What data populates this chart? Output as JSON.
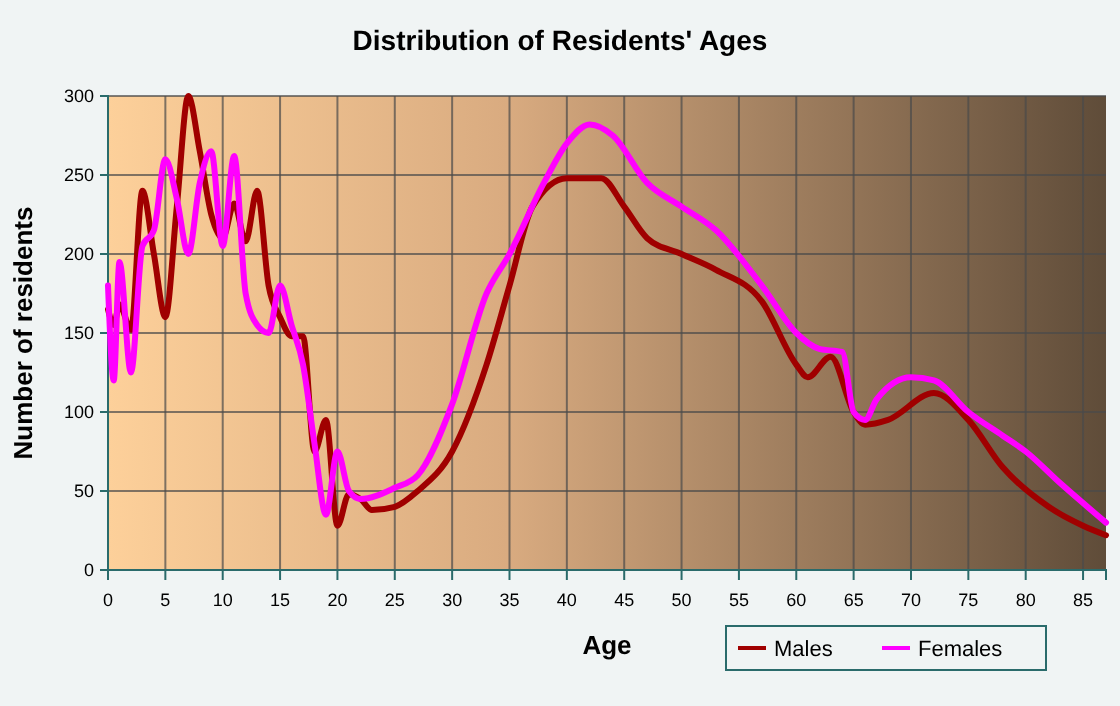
{
  "chart_data": {
    "type": "line",
    "title": "Distribution of Residents' Ages",
    "xlabel": "Age",
    "ylabel": "Number of residents",
    "xlim": [
      0,
      87
    ],
    "xticks": [
      0,
      5,
      10,
      15,
      20,
      25,
      30,
      35,
      40,
      45,
      50,
      55,
      60,
      65,
      70,
      75,
      80,
      85
    ],
    "ylim": [
      0,
      300
    ],
    "yticks": [
      0,
      50,
      100,
      150,
      200,
      250,
      300
    ],
    "grid": true,
    "legend": "bottom right",
    "marker": "none",
    "line_style": "solid",
    "series": [
      {
        "name": "Males",
        "color": "#a00000",
        "x": [
          0,
          0.5,
          1,
          2,
          3,
          4,
          5,
          6,
          7,
          8,
          9,
          10,
          11,
          12,
          13,
          14,
          15,
          16,
          17,
          18,
          19,
          20,
          21,
          22,
          23,
          25,
          27,
          30,
          33,
          35,
          37,
          40,
          43,
          45,
          47,
          50,
          53,
          57,
          60,
          61,
          63,
          65,
          66,
          68,
          72,
          75,
          78,
          82,
          85,
          87
        ],
        "values": [
          165,
          155,
          168,
          152,
          240,
          200,
          160,
          230,
          300,
          265,
          225,
          210,
          232,
          208,
          240,
          180,
          160,
          148,
          148,
          75,
          95,
          28,
          48,
          45,
          38,
          40,
          50,
          75,
          130,
          180,
          230,
          248,
          248,
          230,
          210,
          200,
          190,
          170,
          130,
          122,
          135,
          100,
          92,
          95,
          112,
          95,
          65,
          40,
          28,
          22
        ]
      },
      {
        "name": "Females",
        "color": "#ff00ff",
        "x": [
          0,
          0.5,
          1,
          2,
          3,
          4,
          5,
          6,
          7,
          8,
          9,
          10,
          11,
          12,
          13,
          14,
          15,
          16,
          17,
          18,
          19,
          20,
          21,
          22,
          25,
          27,
          30,
          33,
          35,
          38,
          40,
          42,
          44,
          47,
          50,
          53,
          57,
          60,
          62,
          64,
          65,
          66,
          67,
          70,
          72,
          75,
          78,
          80,
          83,
          87
        ],
        "values": [
          180,
          120,
          195,
          125,
          205,
          215,
          260,
          235,
          200,
          245,
          265,
          205,
          262,
          175,
          155,
          150,
          180,
          155,
          130,
          80,
          35,
          75,
          50,
          45,
          52,
          60,
          105,
          175,
          200,
          245,
          270,
          282,
          275,
          245,
          230,
          215,
          180,
          150,
          140,
          138,
          100,
          95,
          108,
          122,
          120,
          100,
          85,
          75,
          55,
          30
        ]
      }
    ]
  }
}
